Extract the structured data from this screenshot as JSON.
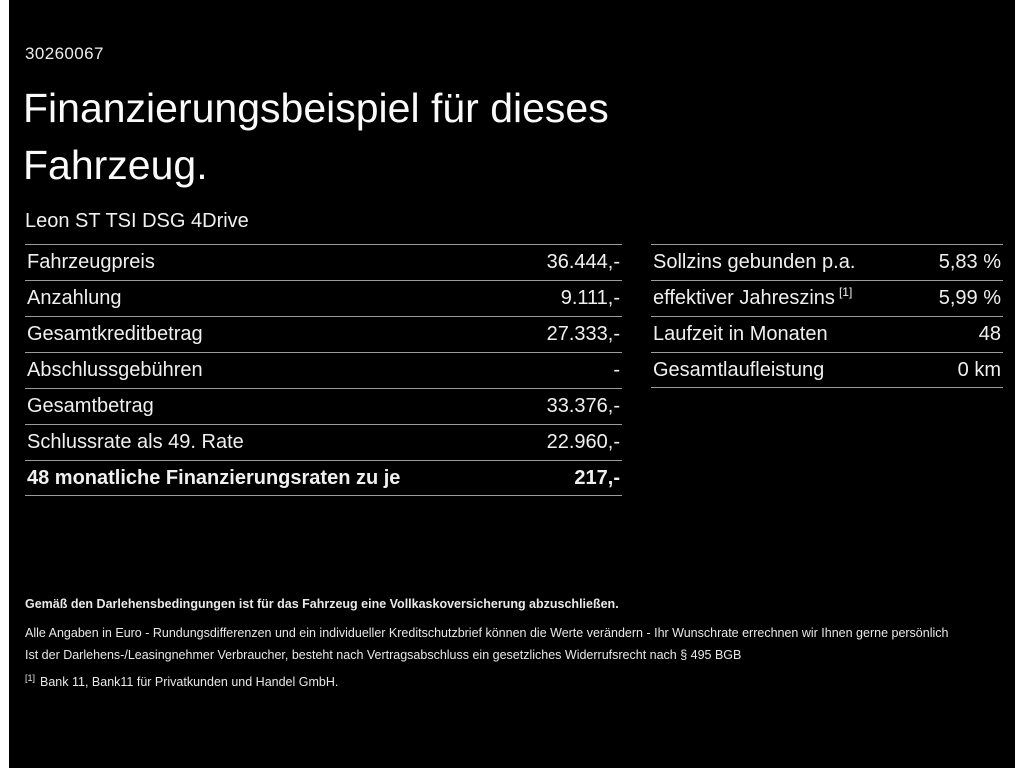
{
  "page": {
    "doc_number": "30260067",
    "title_line1": "Finanzierungsbeispiel für dieses",
    "title_line2": "Fahrzeug.",
    "vehicle_model": "Leon ST TSI DSG 4Drive"
  },
  "left_table": {
    "rows": [
      {
        "label": "Fahrzeugpreis",
        "value": "36.444,-"
      },
      {
        "label": "Anzahlung",
        "value": "9.111,-"
      },
      {
        "label": "Gesamtkreditbetrag",
        "value": "27.333,-"
      },
      {
        "label": "Abschlussgebühren",
        "value": "-"
      },
      {
        "label": "Gesamtbetrag",
        "value": "33.376,-"
      },
      {
        "label": "Schlussrate als 49. Rate",
        "value": "22.960,-"
      },
      {
        "label": "48 monatliche Finanzierungsraten zu je",
        "value": "217,-"
      }
    ]
  },
  "right_table": {
    "rows": [
      {
        "label": "Sollzins gebunden p.a.",
        "label_sup": "",
        "value": "5,83 %"
      },
      {
        "label": "effektiver Jahreszins",
        "label_sup": "[1]",
        "value": "5,99 %"
      },
      {
        "label": "Laufzeit in Monaten",
        "label_sup": "",
        "value": "48"
      },
      {
        "label": "Gesamtlaufleistung",
        "label_sup": "",
        "value": "0 km"
      }
    ]
  },
  "footer": {
    "line1": "Gemäß den Darlehensbedingungen ist für das Fahrzeug eine Vollkaskoversicherung abzuschließen.",
    "line2": "Alle Angaben in Euro - Rundungsdifferenzen und ein individueller Kreditschutzbrief können die Werte verändern - Ihr Wunschrate errechnen wir Ihnen gerne persönlich",
    "line3": "Ist der Darlehens-/Leasingnehmer Verbraucher, besteht nach Vertragsabschluss ein gesetzliches Widerrufsrecht nach § 495 BGB",
    "footnote_marker": "[1]",
    "footnote_text": "Bank 11, Bank11 für Privatkunden und Handel GmbH."
  },
  "colors": {
    "background": "#000000",
    "side_border": "#ffffff",
    "text": "#f0f0f0",
    "divider": "#9c9c9c"
  }
}
